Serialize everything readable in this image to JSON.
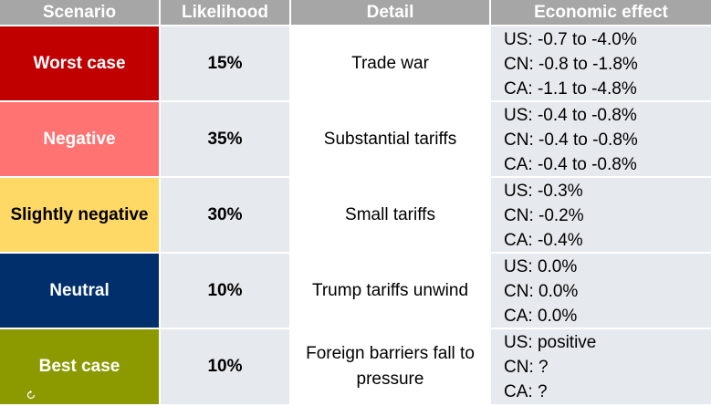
{
  "headers": [
    "Scenario",
    "Likelihood",
    "Detail",
    "Economic effect"
  ],
  "rows": [
    {
      "scenario": "Worst case",
      "color": "#c00000",
      "text_color": "#ffffff",
      "likelihood": "15%",
      "detail": "Trade war",
      "effects": [
        "US: -0.7 to -4.0%",
        "CN: -0.8 to -1.8%",
        "CA: -1.1 to -4.8%"
      ]
    },
    {
      "scenario": "Negative",
      "color": "#ff7373",
      "text_color": "#ffffff",
      "likelihood": "35%",
      "detail": "Substantial tariffs",
      "effects": [
        "US: -0.4 to -0.8%",
        "CN: -0.4 to -0.8%",
        "CA: -0.4 to -0.8%"
      ]
    },
    {
      "scenario": "Slightly negative",
      "color": "#ffd966",
      "text_color": "#000000",
      "likelihood": "30%",
      "detail": "Small tariffs",
      "effects": [
        "US: -0.3%",
        "CN: -0.2%",
        "CA: -0.4%"
      ]
    },
    {
      "scenario": "Neutral",
      "color": "#002f6c",
      "text_color": "#ffffff",
      "likelihood": "10%",
      "detail": "Trump tariffs unwind",
      "effects": [
        "US: 0.0%",
        "CN: 0.0%",
        "CA: 0.0%"
      ]
    },
    {
      "scenario": "Best case",
      "color": "#8c9a00",
      "text_color": "#ffffff",
      "likelihood": "10%",
      "detail": "Foreign barriers fall to pressure",
      "effects": [
        "US: positive",
        "CN: ?",
        "CA: ?"
      ]
    }
  ],
  "icons": {
    "refresh": "refresh-icon"
  }
}
